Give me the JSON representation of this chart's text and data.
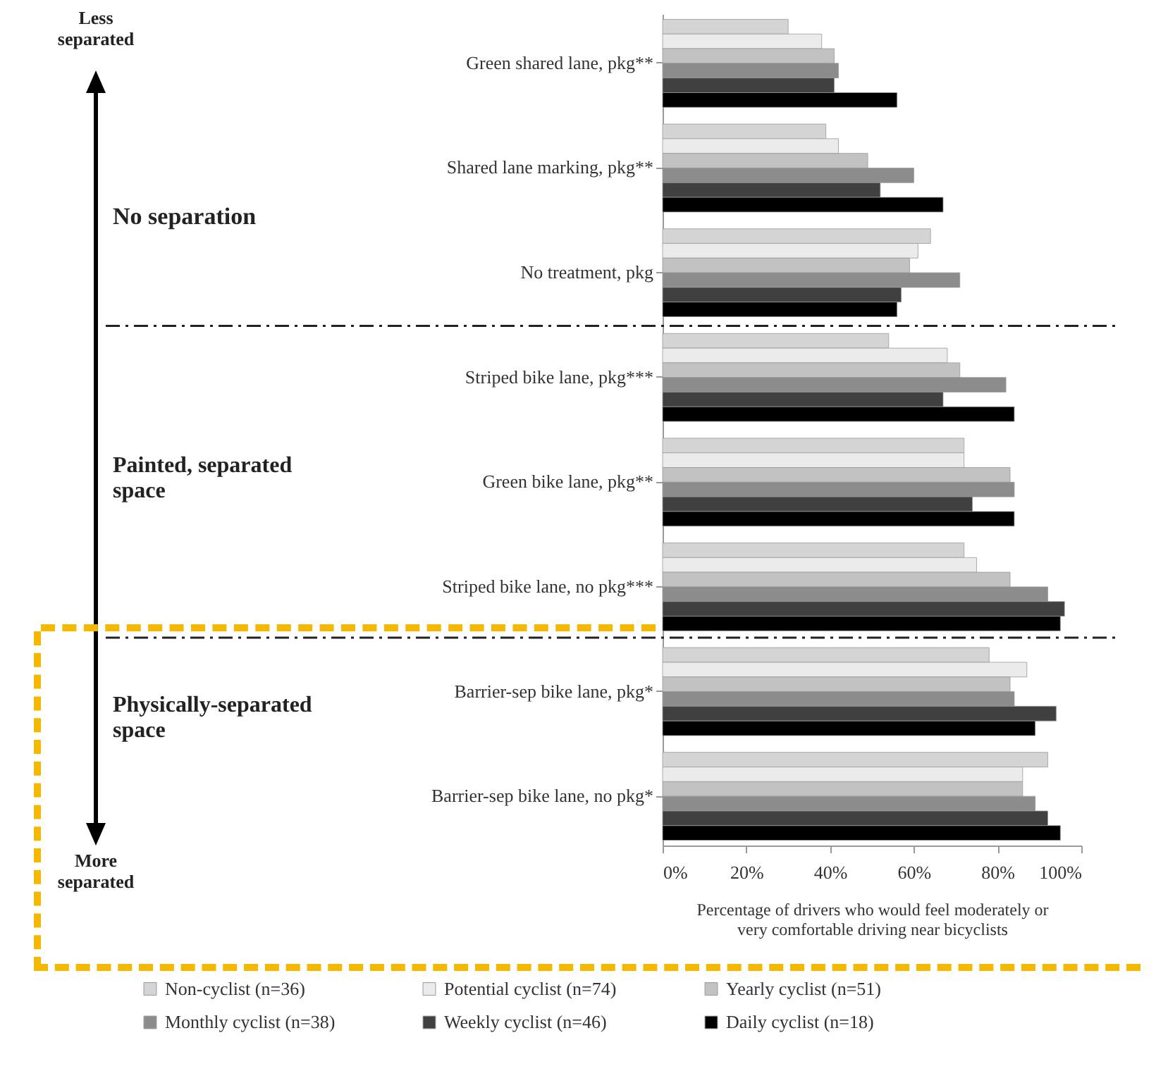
{
  "chart_data": {
    "type": "bar",
    "orientation": "horizontal",
    "categories": [
      "Green shared lane, pkg**",
      "Shared lane marking, pkg**",
      "No treatment, pkg",
      "Striped bike lane, pkg***",
      "Green bike lane, pkg**",
      "Striped bike lane, no pkg***",
      "Barrier-sep bike lane, pkg*",
      "Barrier-sep bike lane, no pkg*"
    ],
    "series": [
      {
        "name": "Non-cyclist (n=36)",
        "color": "#d4d4d4",
        "values": [
          30,
          39,
          64,
          54,
          72,
          72,
          78,
          92
        ]
      },
      {
        "name": "Potential cyclist (n=74)",
        "color": "#ebebeb",
        "values": [
          38,
          42,
          61,
          68,
          72,
          75,
          87,
          86
        ]
      },
      {
        "name": "Yearly cyclist (n=51)",
        "color": "#c2c2c2",
        "values": [
          41,
          49,
          59,
          71,
          83,
          83,
          83,
          86
        ]
      },
      {
        "name": "Monthly cyclist (n=38)",
        "color": "#8c8c8c",
        "values": [
          42,
          60,
          71,
          82,
          84,
          92,
          84,
          89
        ]
      },
      {
        "name": "Weekly cyclist (n=46)",
        "color": "#404040",
        "values": [
          41,
          52,
          57,
          67,
          74,
          96,
          94,
          92
        ]
      },
      {
        "name": "Daily cyclist (n=18)",
        "color": "#000000",
        "values": [
          56,
          67,
          56,
          84,
          84,
          95,
          89,
          95
        ]
      }
    ],
    "xlim": [
      0,
      100
    ],
    "xticks": [
      {
        "value": 0,
        "label": "0%"
      },
      {
        "value": 20,
        "label": "20%"
      },
      {
        "value": 40,
        "label": "40%"
      },
      {
        "value": 60,
        "label": "60%"
      },
      {
        "value": 80,
        "label": "80%"
      },
      {
        "value": 100,
        "label": "100%"
      }
    ],
    "xlabel": "Percentage of drivers who would feel moderately or very comfortable driving near bicyclists",
    "legend": "bottom",
    "grid": false,
    "annotations": [
      "Less separated",
      "More separated",
      "No separation",
      "Painted, separated space",
      "Physically-separated space"
    ]
  }
}
